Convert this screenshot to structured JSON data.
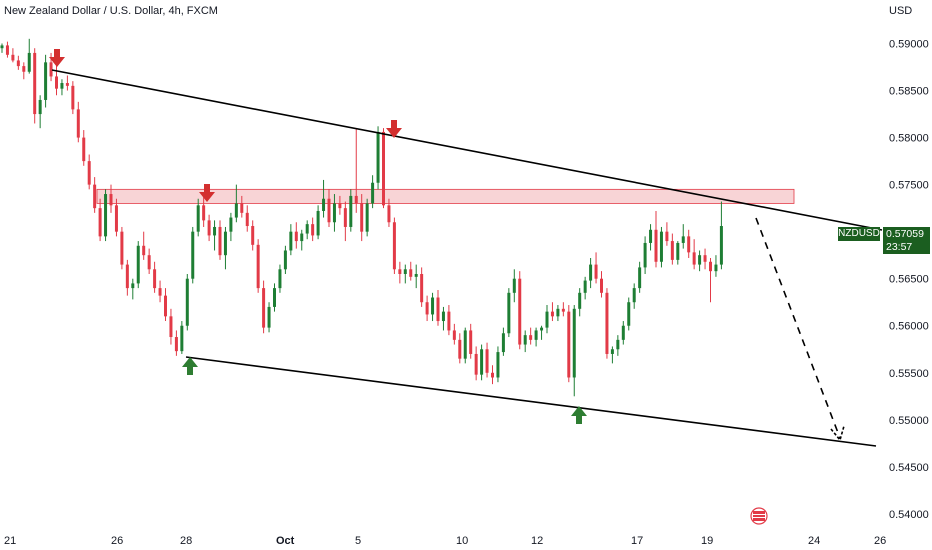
{
  "header": {
    "title": "New Zealand Dollar / U.S. Dollar, 4h, FXCM",
    "currency": "USD"
  },
  "price_tag": {
    "symbol": "NZDUSD",
    "price": "0.57059",
    "countdown": "23:57"
  },
  "colors": {
    "up": "#1e7e34",
    "down": "#e23a47",
    "zone_fill": "#f6c5c8",
    "zone_border": "#e23a47",
    "trendline": "#000000",
    "arrow_down": "#d32f2f",
    "arrow_up": "#2e7d32",
    "price_tag_bg": "#1b5e20"
  },
  "chart_data": {
    "type": "candlestick",
    "symbol": "NZDUSD",
    "timeframe": "4h",
    "y_axis": {
      "ticks": [
        "0.59000",
        "0.58500",
        "0.58000",
        "0.57500",
        "0.57000",
        "0.56500",
        "0.56000",
        "0.55500",
        "0.55000",
        "0.54500",
        "0.54000"
      ],
      "range": [
        0.5385,
        0.5925
      ]
    },
    "x_axis": {
      "ticks": [
        {
          "label": "21",
          "bold": false
        },
        {
          "label": "26",
          "bold": false
        },
        {
          "label": "28",
          "bold": false
        },
        {
          "label": "Oct",
          "bold": true
        },
        {
          "label": "5",
          "bold": false
        },
        {
          "label": "10",
          "bold": false
        },
        {
          "label": "12",
          "bold": false
        },
        {
          "label": "17",
          "bold": false
        },
        {
          "label": "19",
          "bold": false
        },
        {
          "label": "24",
          "bold": false
        },
        {
          "label": "26",
          "bold": false
        }
      ]
    },
    "candles": [
      [
        0.5895,
        0.59,
        0.589,
        0.5898
      ],
      [
        0.5898,
        0.5902,
        0.5885,
        0.5888
      ],
      [
        0.5888,
        0.5895,
        0.588,
        0.5882
      ],
      [
        0.5882,
        0.5887,
        0.5872,
        0.5876
      ],
      [
        0.5876,
        0.588,
        0.5862,
        0.587
      ],
      [
        0.587,
        0.5905,
        0.5868,
        0.589
      ],
      [
        0.589,
        0.5895,
        0.5815,
        0.5825
      ],
      [
        0.5825,
        0.5845,
        0.581,
        0.584
      ],
      [
        0.584,
        0.5888,
        0.5832,
        0.588
      ],
      [
        0.588,
        0.589,
        0.586,
        0.5865
      ],
      [
        0.5865,
        0.5878,
        0.5845,
        0.5852
      ],
      [
        0.5852,
        0.5862,
        0.5845,
        0.5858
      ],
      [
        0.5858,
        0.5866,
        0.585,
        0.5855
      ],
      [
        0.5855,
        0.586,
        0.5825,
        0.583
      ],
      [
        0.583,
        0.5838,
        0.5795,
        0.58
      ],
      [
        0.58,
        0.5808,
        0.577,
        0.5775
      ],
      [
        0.5775,
        0.5782,
        0.5745,
        0.575
      ],
      [
        0.575,
        0.5758,
        0.572,
        0.5725
      ],
      [
        0.5725,
        0.5735,
        0.569,
        0.5695
      ],
      [
        0.5695,
        0.5745,
        0.569,
        0.574
      ],
      [
        0.574,
        0.575,
        0.572,
        0.5728
      ],
      [
        0.5728,
        0.5735,
        0.5695,
        0.57
      ],
      [
        0.57,
        0.5705,
        0.566,
        0.5665
      ],
      [
        0.5665,
        0.567,
        0.5632,
        0.564
      ],
      [
        0.564,
        0.565,
        0.5628,
        0.5645
      ],
      [
        0.5645,
        0.569,
        0.564,
        0.5685
      ],
      [
        0.5685,
        0.57,
        0.567,
        0.5675
      ],
      [
        0.5675,
        0.5682,
        0.5655,
        0.566
      ],
      [
        0.566,
        0.5668,
        0.5635,
        0.564
      ],
      [
        0.564,
        0.5648,
        0.5625,
        0.5632
      ],
      [
        0.5632,
        0.564,
        0.5605,
        0.561
      ],
      [
        0.561,
        0.5618,
        0.558,
        0.5588
      ],
      [
        0.5588,
        0.5595,
        0.5568,
        0.5573
      ],
      [
        0.5573,
        0.5605,
        0.557,
        0.56
      ],
      [
        0.56,
        0.5655,
        0.5595,
        0.565
      ],
      [
        0.565,
        0.5705,
        0.5645,
        0.57
      ],
      [
        0.57,
        0.5735,
        0.5695,
        0.5728
      ],
      [
        0.5728,
        0.5738,
        0.5705,
        0.5712
      ],
      [
        0.5712,
        0.5718,
        0.569,
        0.5696
      ],
      [
        0.5696,
        0.5712,
        0.568,
        0.5705
      ],
      [
        0.5705,
        0.5712,
        0.567,
        0.5675
      ],
      [
        0.5675,
        0.5705,
        0.566,
        0.57
      ],
      [
        0.57,
        0.572,
        0.569,
        0.5715
      ],
      [
        0.5715,
        0.575,
        0.571,
        0.573
      ],
      [
        0.573,
        0.5738,
        0.5715,
        0.572
      ],
      [
        0.572,
        0.5728,
        0.57,
        0.5706
      ],
      [
        0.5706,
        0.5712,
        0.568,
        0.5686
      ],
      [
        0.5686,
        0.5692,
        0.5635,
        0.564
      ],
      [
        0.564,
        0.5648,
        0.5592,
        0.5598
      ],
      [
        0.5598,
        0.5625,
        0.5593,
        0.562
      ],
      [
        0.562,
        0.5645,
        0.5615,
        0.564
      ],
      [
        0.564,
        0.5665,
        0.5635,
        0.566
      ],
      [
        0.566,
        0.5685,
        0.5655,
        0.568
      ],
      [
        0.568,
        0.5708,
        0.5675,
        0.57
      ],
      [
        0.57,
        0.571,
        0.5682,
        0.569
      ],
      [
        0.569,
        0.5702,
        0.568,
        0.5698
      ],
      [
        0.5698,
        0.5712,
        0.5692,
        0.5708
      ],
      [
        0.5708,
        0.5715,
        0.569,
        0.5696
      ],
      [
        0.5696,
        0.5728,
        0.5692,
        0.5722
      ],
      [
        0.5722,
        0.5755,
        0.5715,
        0.5735
      ],
      [
        0.5735,
        0.5745,
        0.5705,
        0.571
      ],
      [
        0.571,
        0.574,
        0.57,
        0.573
      ],
      [
        0.573,
        0.5738,
        0.5718,
        0.5725
      ],
      [
        0.5725,
        0.5732,
        0.569,
        0.5705
      ],
      [
        0.5705,
        0.5745,
        0.57,
        0.5738
      ],
      [
        0.5738,
        0.581,
        0.572,
        0.573
      ],
      [
        0.573,
        0.574,
        0.569,
        0.57
      ],
      [
        0.57,
        0.5735,
        0.5695,
        0.573
      ],
      [
        0.573,
        0.576,
        0.5725,
        0.5752
      ],
      [
        0.5752,
        0.5812,
        0.5745,
        0.5806
      ],
      [
        0.5806,
        0.581,
        0.5725,
        0.5728
      ],
      [
        0.5728,
        0.5735,
        0.5705,
        0.571
      ],
      [
        0.571,
        0.5715,
        0.5655,
        0.566
      ],
      [
        0.566,
        0.5668,
        0.5645,
        0.5655
      ],
      [
        0.5655,
        0.5665,
        0.5645,
        0.566
      ],
      [
        0.566,
        0.5668,
        0.5648,
        0.5652
      ],
      [
        0.5652,
        0.5665,
        0.564,
        0.5655
      ],
      [
        0.5655,
        0.5662,
        0.562,
        0.5625
      ],
      [
        0.5625,
        0.5632,
        0.5605,
        0.5612
      ],
      [
        0.5612,
        0.5635,
        0.5605,
        0.563
      ],
      [
        0.563,
        0.5638,
        0.56,
        0.5605
      ],
      [
        0.5605,
        0.562,
        0.5595,
        0.5615
      ],
      [
        0.5615,
        0.5622,
        0.559,
        0.5595
      ],
      [
        0.5595,
        0.5602,
        0.558,
        0.5585
      ],
      [
        0.5585,
        0.5592,
        0.556,
        0.5565
      ],
      [
        0.5565,
        0.5598,
        0.556,
        0.5595
      ],
      [
        0.5595,
        0.5602,
        0.5565,
        0.557
      ],
      [
        0.557,
        0.5578,
        0.5542,
        0.5548
      ],
      [
        0.5548,
        0.558,
        0.5542,
        0.5575
      ],
      [
        0.5575,
        0.5582,
        0.5545,
        0.555
      ],
      [
        0.555,
        0.5558,
        0.5538,
        0.5545
      ],
      [
        0.5545,
        0.5578,
        0.554,
        0.5572
      ],
      [
        0.5572,
        0.5598,
        0.5568,
        0.5592
      ],
      [
        0.5592,
        0.564,
        0.5588,
        0.5635
      ],
      [
        0.5635,
        0.566,
        0.5625,
        0.565
      ],
      [
        0.565,
        0.5658,
        0.5575,
        0.558
      ],
      [
        0.558,
        0.5595,
        0.5572,
        0.559
      ],
      [
        0.559,
        0.5598,
        0.558,
        0.5585
      ],
      [
        0.5585,
        0.5598,
        0.5578,
        0.5595
      ],
      [
        0.5595,
        0.56,
        0.5585,
        0.5598
      ],
      [
        0.5598,
        0.5622,
        0.5592,
        0.5615
      ],
      [
        0.5615,
        0.5625,
        0.5605,
        0.561
      ],
      [
        0.561,
        0.5622,
        0.5605,
        0.5618
      ],
      [
        0.5618,
        0.5625,
        0.561,
        0.5615
      ],
      [
        0.5615,
        0.5622,
        0.554,
        0.5545
      ],
      [
        0.5545,
        0.5622,
        0.5525,
        0.5618
      ],
      [
        0.5618,
        0.564,
        0.561,
        0.5635
      ],
      [
        0.5635,
        0.5652,
        0.5628,
        0.5648
      ],
      [
        0.5648,
        0.5672,
        0.564,
        0.5665
      ],
      [
        0.5665,
        0.5678,
        0.5645,
        0.565
      ],
      [
        0.565,
        0.5658,
        0.563,
        0.5635
      ],
      [
        0.5635,
        0.564,
        0.5565,
        0.557
      ],
      [
        0.557,
        0.5578,
        0.556,
        0.5575
      ],
      [
        0.5575,
        0.559,
        0.5568,
        0.5585
      ],
      [
        0.5585,
        0.5605,
        0.558,
        0.56
      ],
      [
        0.56,
        0.563,
        0.5595,
        0.5625
      ],
      [
        0.5625,
        0.5645,
        0.5618,
        0.564
      ],
      [
        0.564,
        0.5668,
        0.5635,
        0.5662
      ],
      [
        0.5662,
        0.5695,
        0.5655,
        0.5688
      ],
      [
        0.5688,
        0.5708,
        0.568,
        0.5702
      ],
      [
        0.5702,
        0.5722,
        0.5662,
        0.5668
      ],
      [
        0.5668,
        0.5705,
        0.5662,
        0.57
      ],
      [
        0.57,
        0.571,
        0.5685,
        0.569
      ],
      [
        0.569,
        0.5698,
        0.5665,
        0.567
      ],
      [
        0.567,
        0.569,
        0.5665,
        0.5688
      ],
      [
        0.5688,
        0.5708,
        0.5682,
        0.5695
      ],
      [
        0.5695,
        0.5702,
        0.5672,
        0.5678
      ],
      [
        0.5678,
        0.5692,
        0.566,
        0.5665
      ],
      [
        0.5665,
        0.568,
        0.5658,
        0.5675
      ],
      [
        0.5675,
        0.5682,
        0.566,
        0.5668
      ],
      [
        0.5668,
        0.5672,
        0.5625,
        0.5658
      ],
      [
        0.5658,
        0.5675,
        0.5652,
        0.5665
      ],
      [
        0.5665,
        0.5732,
        0.566,
        0.5706
      ]
    ],
    "resistance_zone": {
      "low": 0.573,
      "high": 0.5745,
      "x_start_index": 13,
      "x_end_index": 138
    },
    "trendlines": [
      {
        "name": "upper",
        "p1": {
          "index": 6,
          "price": 0.589
        },
        "p2": {
          "index": 154,
          "price": 0.5708
        }
      },
      {
        "name": "lower",
        "p1": {
          "index": 30,
          "price": 0.5568
        },
        "p2": {
          "index": 154,
          "price": 0.5469
        }
      }
    ],
    "projection": {
      "p1": {
        "index": 127,
        "price": 0.5732
      },
      "p2": {
        "index": 145,
        "price": 0.5476
      }
    },
    "arrows_down": [
      {
        "index": 6,
        "price": 0.5901
      },
      {
        "index": 32,
        "price": 0.5752
      },
      {
        "index": 68,
        "price": 0.5822
      }
    ],
    "arrows_up": [
      {
        "index": 30,
        "price": 0.5565
      },
      {
        "index": 97,
        "price": 0.5513
      }
    ]
  }
}
